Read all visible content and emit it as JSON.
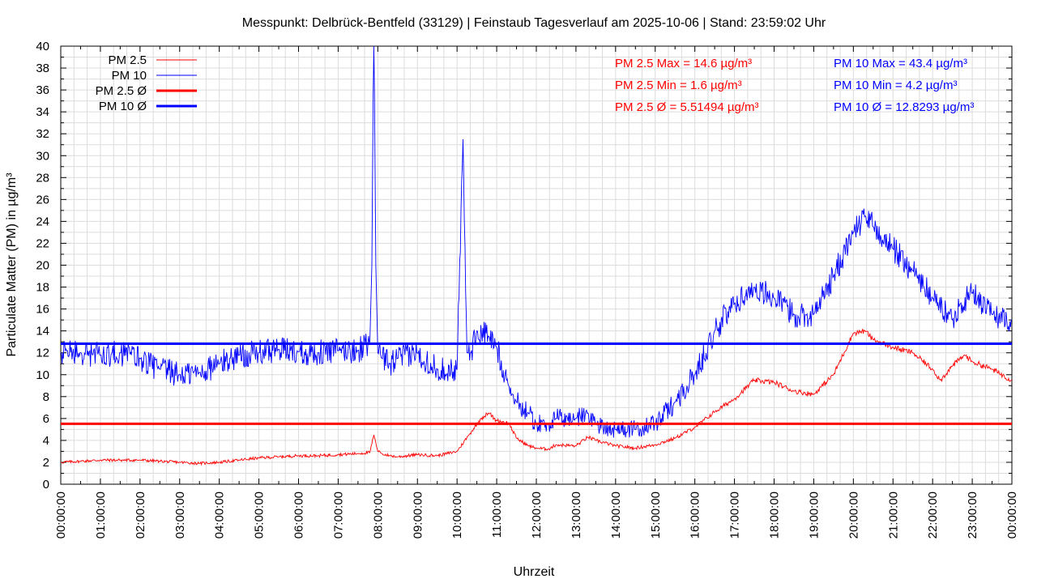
{
  "chart_data": {
    "type": "line",
    "title": "Messpunkt: Delbrück-Bentfeld (33129) | Feinstaub Tagesverlauf am 2025-10-06 | Stand: 23:59:02 Uhr",
    "xlabel": "Uhrzeit",
    "ylabel": "Particulate Matter (PM) in µg/m³",
    "ylim": [
      0,
      40
    ],
    "yticks": [
      "0",
      "2",
      "4",
      "6",
      "8",
      "10",
      "12",
      "14",
      "16",
      "18",
      "20",
      "22",
      "24",
      "26",
      "28",
      "30",
      "32",
      "34",
      "36",
      "38",
      "40"
    ],
    "xlim_hours": [
      0,
      24
    ],
    "xticks": [
      "00:00:00",
      "01:00:00",
      "02:00:00",
      "03:00:00",
      "04:00:00",
      "05:00:00",
      "06:00:00",
      "07:00:00",
      "08:00:00",
      "09:00:00",
      "10:00:00",
      "11:00:00",
      "12:00:00",
      "13:00:00",
      "14:00:00",
      "15:00:00",
      "16:00:00",
      "17:00:00",
      "18:00:00",
      "19:00:00",
      "20:00:00",
      "21:00:00",
      "22:00:00",
      "23:00:00",
      "00:00:00"
    ],
    "grid": true,
    "legend_position": "top-left",
    "series": [
      {
        "name": "PM 2.5",
        "color": "#ff0000",
        "noise": 0.25,
        "x": [
          0,
          0.5,
          1,
          1.5,
          2,
          2.5,
          3,
          3.5,
          4,
          4.5,
          5,
          5.5,
          6,
          6.5,
          7,
          7.5,
          7.8,
          7.9,
          8.0,
          8.1,
          8.3,
          8.5,
          9,
          9.5,
          10,
          10.3,
          10.6,
          10.8,
          11,
          11.3,
          11.5,
          11.8,
          12,
          12.3,
          12.5,
          13,
          13.3,
          13.5,
          14,
          14.5,
          15,
          15.5,
          16,
          16.5,
          17,
          17.5,
          18,
          18.5,
          19,
          19.5,
          20,
          20.3,
          20.5,
          21,
          21.5,
          22,
          22.2,
          22.5,
          22.8,
          23,
          23.5,
          23.99
        ],
        "y": [
          2.0,
          2.1,
          2.2,
          2.2,
          2.2,
          2.1,
          2.0,
          1.9,
          2.0,
          2.2,
          2.4,
          2.5,
          2.6,
          2.6,
          2.7,
          2.8,
          2.9,
          4.5,
          3.0,
          2.8,
          2.6,
          2.5,
          2.7,
          2.6,
          3.0,
          4.5,
          6.0,
          6.5,
          5.8,
          5.6,
          4.2,
          3.5,
          3.3,
          3.2,
          3.6,
          3.5,
          4.3,
          4.0,
          3.5,
          3.3,
          3.6,
          4.2,
          5.2,
          6.6,
          7.8,
          9.5,
          9.3,
          8.5,
          8.2,
          10.0,
          13.8,
          14.0,
          13.2,
          12.5,
          12.0,
          10.5,
          9.5,
          10.8,
          11.8,
          11.2,
          10.5,
          9.5
        ]
      },
      {
        "name": "PM 10",
        "color": "#0000ff",
        "noise": 1.2,
        "x": [
          0,
          0.5,
          1,
          1.5,
          2,
          2.5,
          3,
          3.5,
          4,
          4.5,
          5,
          5.5,
          6,
          6.5,
          7,
          7.5,
          7.8,
          7.85,
          7.9,
          7.95,
          8.0,
          8.1,
          8.3,
          8.5,
          9,
          9.5,
          10,
          10.15,
          10.25,
          10.35,
          10.5,
          10.8,
          11,
          11.3,
          11.5,
          11.8,
          12,
          12.3,
          12.5,
          13,
          13.3,
          13.5,
          14,
          14.5,
          15,
          15.5,
          16,
          16.5,
          17,
          17.5,
          18,
          18.5,
          19,
          19.5,
          20,
          20.3,
          20.5,
          21,
          21.5,
          22,
          22.5,
          22.7,
          23,
          23.5,
          23.99
        ],
        "y": [
          12.0,
          12.0,
          11.8,
          12.0,
          11.5,
          10.5,
          10.0,
          10.2,
          11.0,
          11.8,
          12.0,
          12.3,
          12.1,
          12.0,
          12.2,
          12.2,
          13.0,
          20.0,
          43.4,
          20.0,
          12.0,
          11.5,
          11.0,
          11.5,
          12.0,
          10.5,
          10.5,
          31.5,
          12.0,
          12.0,
          14.0,
          13.5,
          12.5,
          9.0,
          7.5,
          6.5,
          5.5,
          5.5,
          6.0,
          6.0,
          6.5,
          5.5,
          5.0,
          5.0,
          5.5,
          7.5,
          10.0,
          14.0,
          16.5,
          18.0,
          17.0,
          15.5,
          15.5,
          19.0,
          23.0,
          24.5,
          23.5,
          21.5,
          19.5,
          17.0,
          15.0,
          16.5,
          17.5,
          15.5,
          15.0
        ]
      }
    ],
    "averages": [
      {
        "name": "PM 2.5 Ø",
        "value": 5.51494,
        "color": "#ff0000"
      },
      {
        "name": "PM 10 Ø",
        "value": 12.8293,
        "color": "#0000ff"
      }
    ],
    "legend": [
      {
        "label": "PM 2.5",
        "color": "#ff0000",
        "thick": false
      },
      {
        "label": "PM 10",
        "color": "#0000ff",
        "thick": false
      },
      {
        "label": "PM 2.5 Ø",
        "color": "#ff0000",
        "thick": true
      },
      {
        "label": "PM 10 Ø",
        "color": "#0000ff",
        "thick": true
      }
    ],
    "annotations": [
      {
        "text": "PM 2.5 Max = 14.6 µg/m³",
        "color": "#ff0000",
        "col": 0,
        "row": 0
      },
      {
        "text": "PM 2.5 Min = 1.6 µg/m³",
        "color": "#ff0000",
        "col": 0,
        "row": 1
      },
      {
        "text": "PM 2.5 Ø = 5.51494 µg/m³",
        "color": "#ff0000",
        "col": 0,
        "row": 2
      },
      {
        "text": "PM 10 Max = 43.4 µg/m³",
        "color": "#0000ff",
        "col": 1,
        "row": 0
      },
      {
        "text": "PM 10 Min = 4.2 µg/m³",
        "color": "#0000ff",
        "col": 1,
        "row": 1
      },
      {
        "text": "PM 10 Ø = 12.8293 µg/m³",
        "color": "#0000ff",
        "col": 1,
        "row": 2
      }
    ]
  }
}
